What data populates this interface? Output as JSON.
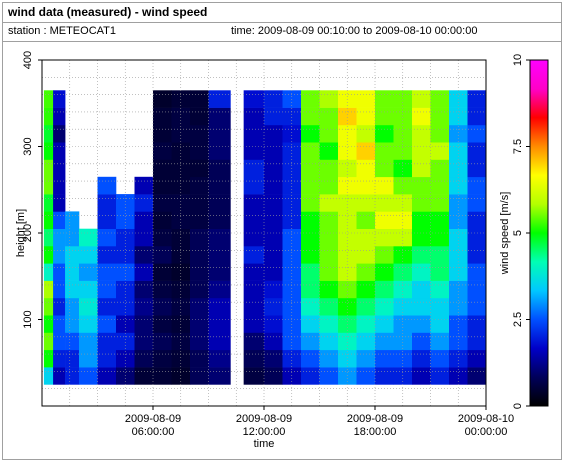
{
  "header": {
    "title": "wind data (measured) - wind speed",
    "station": "station : METEOCAT1",
    "time_range": "time: 2009-08-09 00:10:00 to 2009-08-10 00:00:00"
  },
  "chart_data": {
    "type": "heatmap",
    "title": "wind data (measured) - wind speed",
    "xlabel": "time",
    "ylabel": "height [m]",
    "colorbar_label": "wind speed [m/s]",
    "xlim": [
      0,
      24
    ],
    "ylim": [
      0,
      400
    ],
    "x_ticks": [
      {
        "value": 6,
        "line1": "2009-08-09",
        "line2": "06:00:00"
      },
      {
        "value": 12,
        "line1": "2009-08-09",
        "line2": "12:00:00"
      },
      {
        "value": 18,
        "line1": "2009-08-09",
        "line2": "18:00:00"
      },
      {
        "value": 24,
        "line1": "2009-08-10",
        "line2": "00:00:00"
      }
    ],
    "y_ticks": [
      100,
      200,
      300,
      400
    ],
    "colorbar_range": [
      0,
      10
    ],
    "colorbar_ticks": [
      "0",
      "2.5",
      "5",
      "7.5",
      "10"
    ],
    "colormap": [
      "#000000",
      "#00005a",
      "#0000c8",
      "#0050ff",
      "#00c8ff",
      "#00ffb4",
      "#00ff00",
      "#b4ff00",
      "#ffff00",
      "#ff8c00",
      "#ff0000",
      "#ff00c8",
      "#ff00ff"
    ],
    "height_range_m": [
      20,
      360
    ],
    "heights_m": [
      35,
      55,
      75,
      95,
      115,
      135,
      155,
      175,
      195,
      215,
      235,
      255,
      275,
      295,
      315,
      335,
      355
    ],
    "time_columns": [
      {
        "t": 0.2,
        "top": 360,
        "profile": [
          3.5,
          5.0,
          5.5,
          5.0,
          5.5,
          5.8,
          4.0,
          5.0,
          4.5,
          5.0,
          4.8,
          5.5,
          5.5,
          5.0,
          4.8,
          5.2,
          5.3
        ]
      },
      {
        "t": 1.0,
        "top": 360,
        "profile": [
          1.5,
          2.0,
          2.5,
          2.5,
          2.0,
          2.5,
          2.5,
          3.0,
          3.0,
          2.5,
          1.5,
          1.5,
          1.5,
          1.5,
          1.0,
          1.5,
          1.8
        ]
      },
      {
        "t": 1.5,
        "top": 230,
        "profile": [
          2.0,
          2.0,
          2.5,
          3.0,
          3.0,
          3.5,
          3.5,
          3.5,
          3.0,
          3.0,
          3.8
        ]
      },
      {
        "t": 2.5,
        "top": 210,
        "profile": [
          2.5,
          3.0,
          3.0,
          3.5,
          3.8,
          3.5,
          3.0,
          3.5,
          4.0,
          3.5
        ]
      },
      {
        "t": 3.5,
        "top": 270,
        "profile": [
          1.5,
          2.0,
          2.0,
          2.5,
          2.0,
          2.5,
          2.5,
          2.0,
          2.5,
          2.0,
          2.0,
          2.5,
          2.0
        ]
      },
      {
        "t": 4.5,
        "top": 250,
        "profile": [
          1.0,
          1.5,
          2.0,
          1.5,
          2.0,
          2.0,
          2.5,
          2.0,
          2.0,
          2.5,
          2.5,
          3.0
        ]
      },
      {
        "t": 5.5,
        "top": 270,
        "profile": [
          0.5,
          0.8,
          1.0,
          1.0,
          1.2,
          1.0,
          1.5,
          1.0,
          1.5,
          1.5,
          2.0,
          1.5,
          2.0
        ]
      },
      {
        "t": 6.5,
        "top": 360,
        "profile": [
          0.5,
          0.6,
          0.8,
          0.6,
          0.8,
          0.6,
          0.5,
          0.8,
          0.6,
          0.5,
          0.6,
          0.5,
          0.5,
          0.6,
          0.5,
          0.5,
          0.4
        ]
      },
      {
        "t": 7.5,
        "top": 360,
        "profile": [
          0.4,
          0.5,
          0.6,
          0.5,
          0.6,
          0.5,
          0.4,
          0.5,
          0.5,
          0.6,
          0.6,
          0.5,
          0.5,
          0.5,
          0.6,
          0.6,
          0.5
        ]
      },
      {
        "t": 8.5,
        "top": 360,
        "profile": [
          0.8,
          0.8,
          1.0,
          1.0,
          1.0,
          0.8,
          0.8,
          0.8,
          0.8,
          0.6,
          0.6,
          0.6,
          0.5,
          0.6,
          0.6,
          0.5,
          0.5
        ]
      },
      {
        "t": 9.5,
        "top": 360,
        "profile": [
          1.0,
          1.2,
          1.5,
          1.5,
          1.5,
          1.2,
          1.0,
          1.0,
          1.0,
          0.8,
          0.8,
          0.8,
          0.8,
          1.0,
          1.0,
          1.0,
          2.0
        ]
      },
      {
        "t": 11.5,
        "top": 360,
        "profile": [
          0.6,
          0.8,
          1.0,
          1.5,
          1.5,
          1.5,
          1.5,
          2.0,
          1.5,
          1.5,
          1.5,
          2.0,
          2.0,
          1.5,
          1.5,
          1.5,
          1.8
        ]
      },
      {
        "t": 12.5,
        "top": 360,
        "profile": [
          0.8,
          1.0,
          1.5,
          1.8,
          2.0,
          1.8,
          1.5,
          1.5,
          1.5,
          1.5,
          1.5,
          1.5,
          1.5,
          1.5,
          1.5,
          2.0,
          2.0
        ]
      },
      {
        "t": 13.5,
        "top": 360,
        "profile": [
          1.5,
          2.0,
          2.5,
          2.5,
          2.5,
          2.5,
          2.5,
          2.5,
          2.5,
          2.0,
          2.0,
          2.0,
          2.0,
          2.0,
          1.8,
          2.0,
          2.5
        ]
      },
      {
        "t": 14.5,
        "top": 360,
        "profile": [
          2.0,
          2.5,
          3.0,
          3.5,
          4.0,
          4.5,
          4.5,
          5.0,
          5.0,
          5.0,
          5.5,
          5.5,
          5.5,
          5.5,
          5.0,
          5.5,
          5.5
        ]
      },
      {
        "t": 15.5,
        "top": 360,
        "profile": [
          2.5,
          3.0,
          3.5,
          4.0,
          4.5,
          5.0,
          5.5,
          5.5,
          5.5,
          5.5,
          6.0,
          5.5,
          5.5,
          5.0,
          5.5,
          5.5,
          5.8
        ]
      },
      {
        "t": 16.5,
        "top": 360,
        "profile": [
          3.0,
          3.5,
          4.0,
          4.5,
          5.0,
          5.5,
          6.0,
          6.0,
          6.0,
          6.0,
          6.0,
          6.5,
          6.0,
          6.5,
          6.5,
          7.0,
          6.5
        ]
      },
      {
        "t": 17.5,
        "top": 360,
        "profile": [
          2.5,
          3.0,
          3.5,
          4.0,
          4.5,
          5.0,
          5.5,
          6.0,
          6.0,
          5.5,
          6.0,
          6.5,
          6.5,
          7.0,
          6.0,
          6.5,
          6.5
        ]
      },
      {
        "t": 18.5,
        "top": 360,
        "profile": [
          2.0,
          2.5,
          3.0,
          3.5,
          4.0,
          4.5,
          5.0,
          5.5,
          6.0,
          6.5,
          6.0,
          6.5,
          5.5,
          5.5,
          5.0,
          5.5,
          5.5
        ]
      },
      {
        "t": 19.5,
        "top": 360,
        "profile": [
          2.0,
          2.5,
          3.0,
          3.0,
          3.5,
          4.0,
          4.5,
          5.0,
          6.0,
          6.5,
          6.0,
          5.5,
          5.0,
          5.5,
          5.5,
          5.5,
          5.5
        ]
      },
      {
        "t": 20.5,
        "top": 360,
        "profile": [
          1.5,
          2.0,
          2.5,
          3.0,
          3.5,
          3.5,
          4.0,
          4.5,
          5.0,
          5.0,
          5.5,
          5.5,
          6.0,
          6.0,
          6.0,
          6.5,
          6.0
        ]
      },
      {
        "t": 21.5,
        "top": 360,
        "profile": [
          2.0,
          2.5,
          3.0,
          3.5,
          3.5,
          4.0,
          4.5,
          4.5,
          5.0,
          5.0,
          5.5,
          5.5,
          5.5,
          6.0,
          5.5,
          5.5,
          5.5
        ]
      },
      {
        "t": 22.5,
        "top": 360,
        "profile": [
          1.5,
          2.0,
          2.5,
          2.5,
          3.0,
          3.0,
          3.5,
          3.5,
          3.5,
          3.0,
          3.0,
          3.5,
          3.5,
          3.5,
          3.0,
          3.5,
          3.5
        ]
      },
      {
        "t": 23.5,
        "top": 360,
        "profile": [
          1.0,
          1.5,
          2.0,
          2.0,
          2.5,
          2.5,
          2.5,
          2.0,
          2.0,
          2.0,
          2.5,
          2.5,
          2.0,
          2.0,
          2.5,
          2.0,
          2.0
        ]
      }
    ],
    "grid": true,
    "legend": "colorbar-right"
  }
}
